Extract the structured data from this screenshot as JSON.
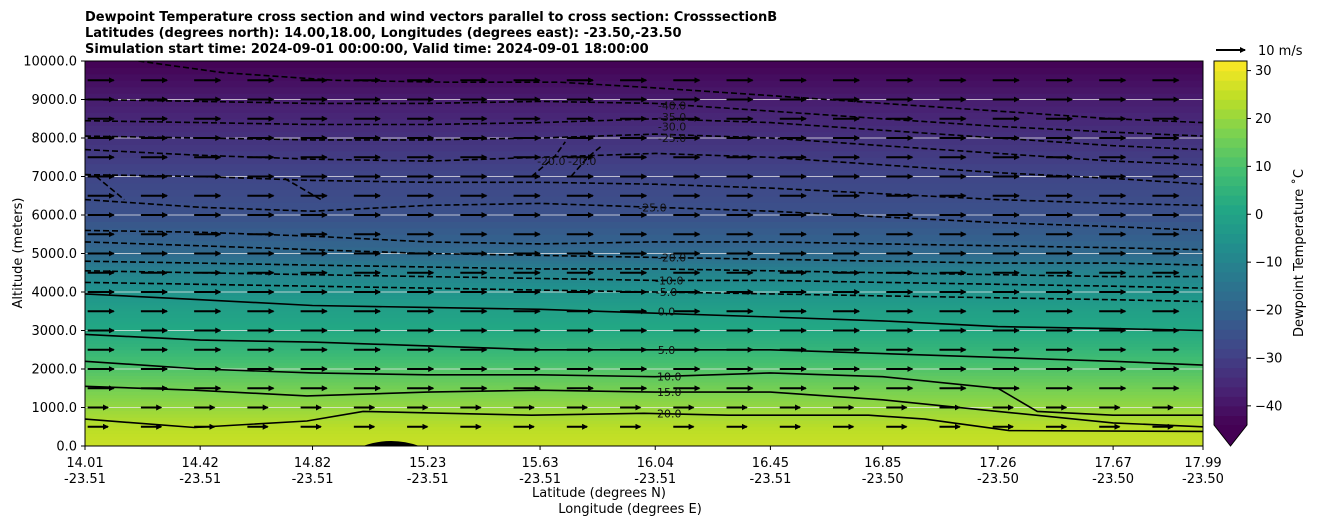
{
  "chart_data": {
    "type": "heatmap",
    "title_lines": [
      "Dewpoint Temperature cross section and wind vectors parallel to cross section: CrosssectionB",
      "Latitudes (degrees north): 14.00,18.00, Longitudes (degrees east): -23.50,-23.50",
      "Simulation start time: 2024-09-01 00:00:00, Valid time: 2024-09-01 18:00:00"
    ],
    "ylabel": "Altitude (meters)",
    "xlabel_lines": [
      "Latitude (degrees N)",
      "Longitude (degrees E)"
    ],
    "ylim": [
      0,
      10000
    ],
    "y_ticks": [
      "0.0",
      "1000.0",
      "2000.0",
      "3000.0",
      "4000.0",
      "5000.0",
      "6000.0",
      "7000.0",
      "8000.0",
      "9000.0",
      "10000.0"
    ],
    "x_ticks": [
      {
        "lat": "14.01",
        "lon": "-23.51"
      },
      {
        "lat": "14.42",
        "lon": "-23.51"
      },
      {
        "lat": "14.82",
        "lon": "-23.51"
      },
      {
        "lat": "15.23",
        "lon": "-23.51"
      },
      {
        "lat": "15.63",
        "lon": "-23.51"
      },
      {
        "lat": "16.04",
        "lon": "-23.51"
      },
      {
        "lat": "16.45",
        "lon": "-23.51"
      },
      {
        "lat": "16.85",
        "lon": "-23.50"
      },
      {
        "lat": "17.26",
        "lon": "-23.50"
      },
      {
        "lat": "17.67",
        "lon": "-23.50"
      },
      {
        "lat": "17.99",
        "lon": "-23.50"
      }
    ],
    "grid": "horizontal",
    "colorbar": {
      "label": "Dewpoint Temperature ˚C",
      "range": [
        -44,
        32
      ],
      "ticks": [
        "30",
        "20",
        "10",
        "0",
        "−10",
        "−20",
        "−30",
        "−40"
      ],
      "tick_values": [
        30,
        20,
        10,
        0,
        -10,
        -20,
        -30,
        -40
      ],
      "colormap": "viridis",
      "extend": "min"
    },
    "wind_key": {
      "label": "10 m/s",
      "speed": 10
    },
    "dewpoint_profile": [
      {
        "altitude": 0,
        "value": 26
      },
      {
        "altitude": 500,
        "value": 24
      },
      {
        "altitude": 1000,
        "value": 20
      },
      {
        "altitude": 1500,
        "value": 16
      },
      {
        "altitude": 2000,
        "value": 11
      },
      {
        "altitude": 2500,
        "value": 6
      },
      {
        "altitude": 3000,
        "value": 2
      },
      {
        "altitude": 3500,
        "value": -1
      },
      {
        "altitude": 4000,
        "value": -5
      },
      {
        "altitude": 4500,
        "value": -10
      },
      {
        "altitude": 5000,
        "value": -18
      },
      {
        "altitude": 6000,
        "value": -25
      },
      {
        "altitude": 7000,
        "value": -28
      },
      {
        "altitude": 8000,
        "value": -33
      },
      {
        "altitude": 9000,
        "value": -38
      },
      {
        "altitude": 10000,
        "value": -44
      }
    ],
    "contour_labels": [
      {
        "text": "-40.0",
        "lat": 16.1,
        "altitude": 8850
      },
      {
        "text": "-35.0",
        "lat": 16.1,
        "altitude": 8550
      },
      {
        "text": "-30.0",
        "lat": 16.1,
        "altitude": 8300
      },
      {
        "text": "-25.0",
        "lat": 16.1,
        "altitude": 8000
      },
      {
        "text": "-20.0",
        "lat": 15.67,
        "altitude": 7400
      },
      {
        "text": "-20.0",
        "lat": 15.78,
        "altitude": 7400
      },
      {
        "text": "-25.0",
        "lat": 16.03,
        "altitude": 6200
      },
      {
        "text": "-20.0",
        "lat": 16.1,
        "altitude": 4900
      },
      {
        "text": "-10.0",
        "lat": 16.09,
        "altitude": 4300
      },
      {
        "text": "-5.0",
        "lat": 16.08,
        "altitude": 4000
      },
      {
        "text": "0.0",
        "lat": 16.08,
        "altitude": 3500
      },
      {
        "text": "5.0",
        "lat": 16.08,
        "altitude": 2500
      },
      {
        "text": "10.0",
        "lat": 16.09,
        "altitude": 1800
      },
      {
        "text": "15.0",
        "lat": 16.09,
        "altitude": 1400
      },
      {
        "text": "20.0",
        "lat": 16.09,
        "altitude": 850
      }
    ],
    "contour_lines": [
      {
        "level": 20,
        "points": [
          [
            14.01,
            700
          ],
          [
            14.4,
            480
          ],
          [
            14.8,
            650
          ],
          [
            15.0,
            900
          ],
          [
            15.3,
            850
          ],
          [
            15.6,
            800
          ],
          [
            16.0,
            850
          ],
          [
            16.3,
            800
          ],
          [
            16.8,
            800
          ],
          [
            17.0,
            700
          ],
          [
            17.3,
            400
          ],
          [
            17.99,
            380
          ]
        ]
      },
      {
        "level": 15,
        "points": [
          [
            14.01,
            1550
          ],
          [
            14.4,
            1450
          ],
          [
            14.8,
            1300
          ],
          [
            15.23,
            1400
          ],
          [
            15.63,
            1450
          ],
          [
            16.04,
            1400
          ],
          [
            16.45,
            1400
          ],
          [
            16.85,
            1200
          ],
          [
            17.26,
            900
          ],
          [
            17.67,
            600
          ],
          [
            17.99,
            500
          ]
        ]
      },
      {
        "level": 10,
        "points": [
          [
            14.01,
            2200
          ],
          [
            14.42,
            2000
          ],
          [
            14.82,
            1900
          ],
          [
            15.23,
            1850
          ],
          [
            15.63,
            1850
          ],
          [
            16.04,
            1800
          ],
          [
            16.45,
            1900
          ],
          [
            16.85,
            1800
          ],
          [
            17.26,
            1500
          ],
          [
            17.4,
            900
          ],
          [
            17.67,
            800
          ],
          [
            17.99,
            800
          ]
        ]
      },
      {
        "level": 5,
        "points": [
          [
            14.01,
            2900
          ],
          [
            14.42,
            2750
          ],
          [
            14.82,
            2700
          ],
          [
            15.23,
            2600
          ],
          [
            15.63,
            2500
          ],
          [
            16.04,
            2500
          ],
          [
            16.45,
            2500
          ],
          [
            16.85,
            2400
          ],
          [
            17.26,
            2300
          ],
          [
            17.67,
            2200
          ],
          [
            17.99,
            2100
          ]
        ]
      },
      {
        "level": 0,
        "points": [
          [
            14.01,
            3950
          ],
          [
            14.42,
            3800
          ],
          [
            14.82,
            3650
          ],
          [
            15.23,
            3600
          ],
          [
            15.63,
            3550
          ],
          [
            16.04,
            3450
          ],
          [
            16.45,
            3350
          ],
          [
            16.85,
            3250
          ],
          [
            17.26,
            3100
          ],
          [
            17.67,
            3050
          ],
          [
            17.99,
            3000
          ]
        ]
      },
      {
        "level": -5,
        "points": [
          [
            14.01,
            4250
          ],
          [
            14.42,
            4200
          ],
          [
            14.82,
            4150
          ],
          [
            15.23,
            4100
          ],
          [
            15.63,
            4050
          ],
          [
            16.04,
            4000
          ],
          [
            16.45,
            3950
          ],
          [
            16.85,
            3900
          ],
          [
            17.26,
            3850
          ],
          [
            17.67,
            3800
          ],
          [
            17.99,
            3750
          ]
        ]
      },
      {
        "level": -10,
        "points": [
          [
            14.01,
            4550
          ],
          [
            14.42,
            4500
          ],
          [
            14.82,
            4450
          ],
          [
            15.23,
            4400
          ],
          [
            15.63,
            4350
          ],
          [
            16.04,
            4300
          ],
          [
            16.45,
            4300
          ],
          [
            16.85,
            4250
          ],
          [
            17.26,
            4200
          ],
          [
            17.67,
            4150
          ],
          [
            17.99,
            4100
          ]
        ]
      },
      {
        "level": -15,
        "points": [
          [
            14.01,
            4800
          ],
          [
            14.42,
            4750
          ],
          [
            14.82,
            4700
          ],
          [
            15.23,
            4650
          ],
          [
            15.63,
            4600
          ],
          [
            16.04,
            4600
          ],
          [
            16.45,
            4550
          ],
          [
            16.85,
            4500
          ],
          [
            17.26,
            4450
          ],
          [
            17.67,
            4400
          ],
          [
            17.99,
            4400
          ]
        ]
      },
      {
        "level": -20,
        "points": [
          [
            14.01,
            5300
          ],
          [
            14.42,
            5200
          ],
          [
            14.82,
            5100
          ],
          [
            15.23,
            5000
          ],
          [
            15.63,
            4950
          ],
          [
            16.04,
            4900
          ],
          [
            16.45,
            4850
          ],
          [
            16.85,
            4800
          ],
          [
            17.26,
            4750
          ],
          [
            17.67,
            4750
          ],
          [
            17.99,
            4700
          ]
        ]
      },
      {
        "level": -25,
        "points": [
          [
            14.01,
            5600
          ],
          [
            14.42,
            5550
          ],
          [
            14.82,
            5450
          ],
          [
            15.23,
            5300
          ],
          [
            15.63,
            5250
          ],
          [
            16.04,
            5300
          ],
          [
            16.45,
            5300
          ],
          [
            16.85,
            5250
          ],
          [
            17.26,
            5200
          ],
          [
            17.67,
            5150
          ],
          [
            17.99,
            5100
          ]
        ]
      },
      {
        "level": -25,
        "points": [
          [
            14.01,
            6400
          ],
          [
            14.42,
            6200
          ],
          [
            14.82,
            6100
          ],
          [
            15.23,
            6250
          ],
          [
            15.63,
            6300
          ],
          [
            16.04,
            6200
          ],
          [
            16.45,
            6100
          ],
          [
            16.85,
            5950
          ],
          [
            17.26,
            5800
          ],
          [
            17.67,
            5700
          ],
          [
            17.99,
            5600
          ]
        ]
      },
      {
        "level": -20,
        "points": [
          [
            15.6,
            7000
          ],
          [
            15.68,
            7500
          ],
          [
            15.72,
            7900
          ]
        ]
      },
      {
        "level": -20,
        "points": [
          [
            15.74,
            7000
          ],
          [
            15.8,
            7500
          ],
          [
            15.85,
            7800
          ]
        ]
      },
      {
        "level": -25,
        "points": [
          [
            14.01,
            7050
          ],
          [
            14.42,
            7000
          ],
          [
            14.82,
            6900
          ],
          [
            15.23,
            6850
          ],
          [
            15.63,
            6850
          ],
          [
            16.04,
            6800
          ],
          [
            16.45,
            6700
          ],
          [
            16.85,
            6550
          ],
          [
            17.26,
            6400
          ],
          [
            17.67,
            6300
          ],
          [
            17.99,
            6250
          ]
        ]
      },
      {
        "level": -25,
        "points": [
          [
            14.01,
            7700
          ],
          [
            14.42,
            7550
          ],
          [
            14.82,
            7450
          ],
          [
            15.23,
            7400
          ],
          [
            15.63,
            7500
          ],
          [
            16.04,
            7600
          ],
          [
            16.45,
            7500
          ],
          [
            16.85,
            7300
          ],
          [
            17.26,
            7100
          ],
          [
            17.67,
            6950
          ],
          [
            17.99,
            6800
          ]
        ]
      },
      {
        "level": -30,
        "points": [
          [
            14.01,
            8050
          ],
          [
            14.42,
            8000
          ],
          [
            14.82,
            7950
          ],
          [
            15.23,
            7950
          ],
          [
            15.63,
            8000
          ],
          [
            16.04,
            8100
          ],
          [
            16.45,
            8000
          ],
          [
            16.85,
            7800
          ],
          [
            17.26,
            7600
          ],
          [
            17.67,
            7400
          ],
          [
            17.99,
            7300
          ]
        ]
      },
      {
        "level": -35,
        "points": [
          [
            14.01,
            8450
          ],
          [
            14.42,
            8400
          ],
          [
            14.82,
            8350
          ],
          [
            15.23,
            8350
          ],
          [
            15.63,
            8400
          ],
          [
            16.04,
            8500
          ],
          [
            16.45,
            8400
          ],
          [
            16.85,
            8200
          ],
          [
            17.26,
            8000
          ],
          [
            17.67,
            7800
          ],
          [
            17.99,
            7700
          ]
        ]
      },
      {
        "level": -40,
        "points": [
          [
            14.01,
            9000
          ],
          [
            14.42,
            8950
          ],
          [
            14.82,
            8900
          ],
          [
            15.23,
            8900
          ],
          [
            15.63,
            8950
          ],
          [
            16.04,
            8900
          ],
          [
            16.45,
            8700
          ],
          [
            16.85,
            8500
          ],
          [
            17.26,
            8300
          ],
          [
            17.67,
            8150
          ],
          [
            17.99,
            8050
          ]
        ]
      },
      {
        "level": -40,
        "points": [
          [
            14.2,
            10000
          ],
          [
            14.5,
            9700
          ],
          [
            14.9,
            9500
          ],
          [
            15.3,
            9450
          ],
          [
            15.7,
            9450
          ],
          [
            16.04,
            9300
          ],
          [
            16.45,
            9100
          ],
          [
            16.85,
            8900
          ],
          [
            17.26,
            8700
          ],
          [
            17.67,
            8500
          ],
          [
            17.99,
            8400
          ]
        ]
      },
      {
        "level": -35,
        "points": [
          [
            14.05,
            7000
          ],
          [
            14.1,
            6700
          ],
          [
            14.15,
            6400
          ]
        ]
      },
      {
        "level": -20,
        "points": [
          [
            14.72,
            6950
          ],
          [
            14.78,
            6700
          ],
          [
            14.85,
            6400
          ]
        ]
      }
    ]
  }
}
